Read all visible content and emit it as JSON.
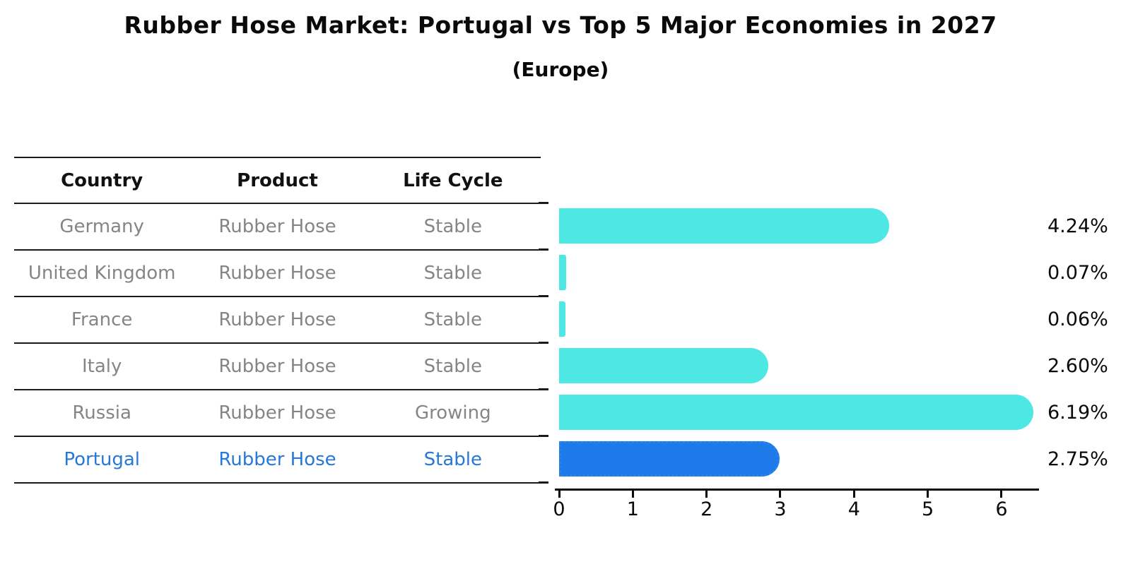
{
  "title": "Rubber Hose Market: Portugal vs Top 5 Major Economies in 2027",
  "subtitle": "(Europe)",
  "table": {
    "headers": [
      "Country",
      "Product",
      "Life Cycle"
    ],
    "rows": [
      {
        "country": "Germany",
        "product": "Rubber Hose",
        "life_cycle": "Stable",
        "highlighted": false
      },
      {
        "country": "United Kingdom",
        "product": "Rubber Hose",
        "life_cycle": "Stable",
        "highlighted": false
      },
      {
        "country": "France",
        "product": "Rubber Hose",
        "life_cycle": "Stable",
        "highlighted": false
      },
      {
        "country": "Italy",
        "product": "Rubber Hose",
        "life_cycle": "Stable",
        "highlighted": false
      },
      {
        "country": "Russia",
        "product": "Rubber Hose",
        "life_cycle": "Growing",
        "highlighted": false
      },
      {
        "country": "Portugal",
        "product": "Rubber Hose",
        "life_cycle": "Stable",
        "highlighted": true
      }
    ]
  },
  "chart_data": {
    "type": "bar",
    "orientation": "horizontal",
    "categories": [
      "Germany",
      "United Kingdom",
      "France",
      "Italy",
      "Russia",
      "Portugal"
    ],
    "values": [
      4.24,
      0.07,
      0.06,
      2.6,
      6.19,
      2.75
    ],
    "value_labels": [
      "4.24%",
      "0.07%",
      "0.06%",
      "2.60%",
      "6.19%",
      "2.75%"
    ],
    "xlabel": "",
    "ylabel": "",
    "xlim": [
      0,
      6.5
    ],
    "xticks": [
      "0",
      "1",
      "2",
      "3",
      "4",
      "5",
      "6"
    ],
    "grid": false,
    "legend_position": "none",
    "bar_color": "#4DE8E4",
    "highlight_bar_color": "#1D7AE8",
    "highlight_border_color": "#2b82ea",
    "highlight_index": 5
  },
  "colors": {
    "background": "#ffffff",
    "title_text": "#0a0a0a",
    "table_header_text": "#111111",
    "table_row_text": "#858585",
    "highlight_text": "#2878d8",
    "rule_line": "#1a1a1a"
  }
}
